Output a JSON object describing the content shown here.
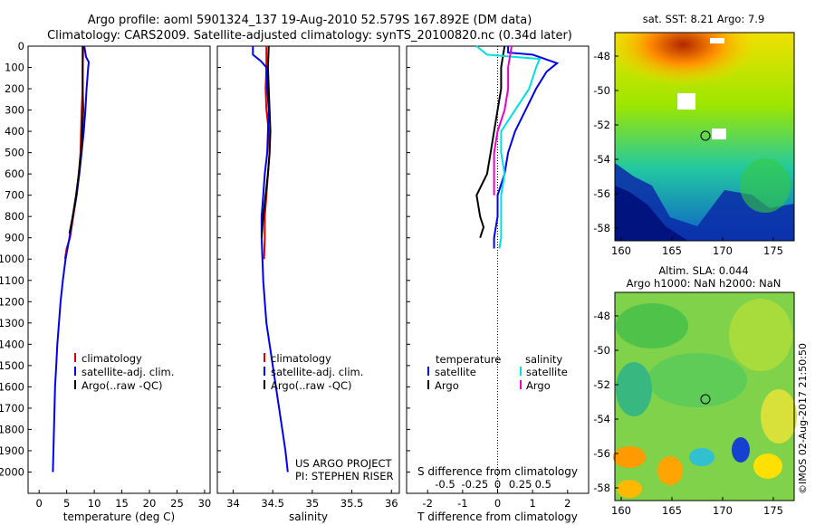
{
  "title_line1": "Argo profile: aoml 5901324_137 19-Aug-2010 52.579S 167.892E (DM data)",
  "title_line2": "Climatology: CARS2009. Satellite-adjusted climatology: synTS_20100820.nc (0.34d later)",
  "map_sst_title": "sat. SST: 8.21 Argo: 7.9",
  "map_sla_title1": "Altim. SLA: 0.044",
  "map_sla_title2": "Argo h1000: NaN h2000: NaN",
  "credit": "©IMOS 02-Aug-2017 21:50:50",
  "project_line1": "US ARGO PROJECT",
  "project_line2": "PI: STEPHEN RISER",
  "colors": {
    "climatology": "#dd0000",
    "satellite": "#0000ee",
    "argo": "#000000",
    "sat_salinity": "#00e0e0",
    "argo_salinity": "#ee00cc"
  },
  "chart_data": [
    {
      "type": "line",
      "xlabel": "temperature (deg C)",
      "ylabel": "",
      "xlim": [
        -2,
        31
      ],
      "ylim": [
        2100,
        0
      ],
      "xticks": [
        0,
        5,
        10,
        15,
        20,
        25,
        30
      ],
      "yticks": [
        0,
        100,
        200,
        300,
        400,
        500,
        600,
        700,
        800,
        900,
        1000,
        1100,
        1200,
        1300,
        1400,
        1500,
        1600,
        1700,
        1800,
        1900,
        2000
      ],
      "legend": [
        "climatology",
        "satellite-adj. clim.",
        "Argo(..raw -QC)"
      ],
      "series": [
        {
          "name": "climatology",
          "color": "#dd0000",
          "points": [
            [
              8.0,
              0
            ],
            [
              7.9,
              100
            ],
            [
              7.9,
              200
            ],
            [
              7.7,
              300
            ],
            [
              7.6,
              400
            ],
            [
              7.5,
              500
            ],
            [
              7.2,
              600
            ],
            [
              6.8,
              700
            ],
            [
              6.2,
              800
            ],
            [
              5.6,
              900
            ],
            [
              5.0,
              950
            ],
            [
              4.7,
              1000
            ]
          ]
        },
        {
          "name": "satellite-adj. clim.",
          "color": "#0000ee",
          "points": [
            [
              8.2,
              0
            ],
            [
              8.5,
              50
            ],
            [
              9.0,
              75
            ],
            [
              8.9,
              100
            ],
            [
              8.6,
              200
            ],
            [
              8.4,
              300
            ],
            [
              8.1,
              400
            ],
            [
              7.7,
              500
            ],
            [
              7.3,
              600
            ],
            [
              6.8,
              700
            ],
            [
              6.1,
              800
            ],
            [
              5.5,
              900
            ],
            [
              4.8,
              1000
            ],
            [
              4.3,
              1100
            ],
            [
              3.9,
              1200
            ],
            [
              3.6,
              1300
            ],
            [
              3.3,
              1400
            ],
            [
              3.1,
              1500
            ],
            [
              2.9,
              1600
            ],
            [
              2.8,
              1700
            ],
            [
              2.7,
              1800
            ],
            [
              2.6,
              1900
            ],
            [
              2.5,
              2000
            ]
          ]
        },
        {
          "name": "Argo(..raw -QC)",
          "color": "#000000",
          "points": [
            [
              7.9,
              0
            ],
            [
              7.9,
              100
            ],
            [
              7.9,
              200
            ],
            [
              8.0,
              300
            ],
            [
              7.8,
              400
            ],
            [
              7.6,
              500
            ],
            [
              7.2,
              600
            ],
            [
              6.7,
              700
            ],
            [
              6.1,
              800
            ],
            [
              5.5,
              880
            ]
          ]
        }
      ]
    },
    {
      "type": "line",
      "xlabel": "salinity",
      "ylabel": "",
      "xlim": [
        33.8,
        36.1
      ],
      "ylim": [
        2100,
        0
      ],
      "xticks": [
        34,
        34.5,
        35,
        35.5,
        36
      ],
      "legend": [
        "climatology",
        "satellite-adj. clim.",
        "Argo(..raw -QC)"
      ],
      "series": [
        {
          "name": "climatology",
          "color": "#dd0000",
          "points": [
            [
              34.42,
              0
            ],
            [
              34.42,
              100
            ],
            [
              34.41,
              200
            ],
            [
              34.42,
              300
            ],
            [
              34.45,
              400
            ],
            [
              34.46,
              500
            ],
            [
              34.44,
              600
            ],
            [
              34.42,
              700
            ],
            [
              34.4,
              800
            ],
            [
              34.4,
              900
            ],
            [
              34.39,
              1000
            ]
          ]
        },
        {
          "name": "satellite-adj. clim.",
          "color": "#0000ee",
          "points": [
            [
              34.25,
              0
            ],
            [
              34.25,
              40
            ],
            [
              34.35,
              70
            ],
            [
              34.42,
              100
            ],
            [
              34.43,
              200
            ],
            [
              34.45,
              300
            ],
            [
              34.44,
              400
            ],
            [
              34.43,
              500
            ],
            [
              34.4,
              600
            ],
            [
              34.38,
              700
            ],
            [
              34.36,
              800
            ],
            [
              34.36,
              900
            ],
            [
              34.37,
              1000
            ],
            [
              34.38,
              1100
            ],
            [
              34.4,
              1200
            ],
            [
              34.42,
              1300
            ],
            [
              34.46,
              1400
            ],
            [
              34.5,
              1500
            ],
            [
              34.54,
              1600
            ],
            [
              34.58,
              1700
            ],
            [
              34.62,
              1800
            ],
            [
              34.66,
              1900
            ],
            [
              34.69,
              2000
            ]
          ]
        },
        {
          "name": "Argo(..raw -QC)",
          "color": "#000000",
          "points": [
            [
              34.45,
              0
            ],
            [
              34.44,
              100
            ],
            [
              34.45,
              200
            ],
            [
              34.46,
              300
            ],
            [
              34.47,
              400
            ],
            [
              34.46,
              500
            ],
            [
              34.44,
              600
            ],
            [
              34.41,
              700
            ],
            [
              34.38,
              800
            ],
            [
              34.36,
              900
            ]
          ]
        }
      ]
    },
    {
      "type": "line",
      "xlabel": "T difference from climatology",
      "xlabel_top": "S difference from climatology",
      "ylabel": "",
      "xlim": [
        -2.6,
        2.6
      ],
      "ylim": [
        2100,
        0
      ],
      "xticks": [
        -2,
        -1,
        0,
        1,
        2
      ],
      "xticks_top_labels": [
        "-0.5",
        "-0.25",
        "0",
        "0.25",
        "0.5"
      ],
      "legend": {
        "temperature": [
          "satellite",
          "Argo"
        ],
        "salinity": [
          "satellite",
          "Argo"
        ]
      },
      "series": [
        {
          "name": "satellite",
          "color": "#0000ee",
          "points": [
            [
              0.3,
              0
            ],
            [
              0.3,
              30
            ],
            [
              1.0,
              40
            ],
            [
              1.7,
              80
            ],
            [
              1.4,
              120
            ],
            [
              1.1,
              200
            ],
            [
              0.8,
              300
            ],
            [
              0.5,
              400
            ],
            [
              0.3,
              500
            ],
            [
              0.2,
              600
            ],
            [
              0.0,
              700
            ],
            [
              0.0,
              800
            ],
            [
              -0.1,
              900
            ],
            [
              -0.1,
              950
            ]
          ]
        },
        {
          "name": "Argo",
          "color": "#000000",
          "points": [
            [
              0.2,
              0
            ],
            [
              0.1,
              100
            ],
            [
              0.1,
              200
            ],
            [
              0.0,
              300
            ],
            [
              -0.1,
              400
            ],
            [
              -0.2,
              500
            ],
            [
              -0.3,
              600
            ],
            [
              -0.6,
              700
            ],
            [
              -0.5,
              800
            ],
            [
              -0.4,
              850
            ],
            [
              -0.5,
              900
            ]
          ]
        },
        {
          "name": "satellite",
          "color": "#00e0e0",
          "points": [
            [
              -0.6,
              0
            ],
            [
              -0.3,
              40
            ],
            [
              1.2,
              60
            ],
            [
              1.1,
              100
            ],
            [
              0.9,
              200
            ],
            [
              0.5,
              300
            ],
            [
              0.1,
              400
            ],
            [
              0.1,
              500
            ],
            [
              0.2,
              600
            ],
            [
              0.1,
              700
            ],
            [
              0.1,
              800
            ],
            [
              0.1,
              900
            ],
            [
              0.05,
              950
            ]
          ]
        },
        {
          "name": "Argo",
          "color": "#ee00cc",
          "points": [
            [
              0.4,
              0
            ],
            [
              0.3,
              100
            ],
            [
              0.3,
              200
            ],
            [
              0.2,
              300
            ],
            [
              0.0,
              400
            ],
            [
              -0.1,
              500
            ],
            [
              -0.1,
              600
            ],
            [
              -0.1,
              700
            ]
          ]
        }
      ]
    }
  ],
  "map_axes": {
    "xticks": [
      "160",
      "165",
      "170",
      "175"
    ],
    "yticks": [
      "-48",
      "-50",
      "-52",
      "-54",
      "-56",
      "-58"
    ]
  }
}
